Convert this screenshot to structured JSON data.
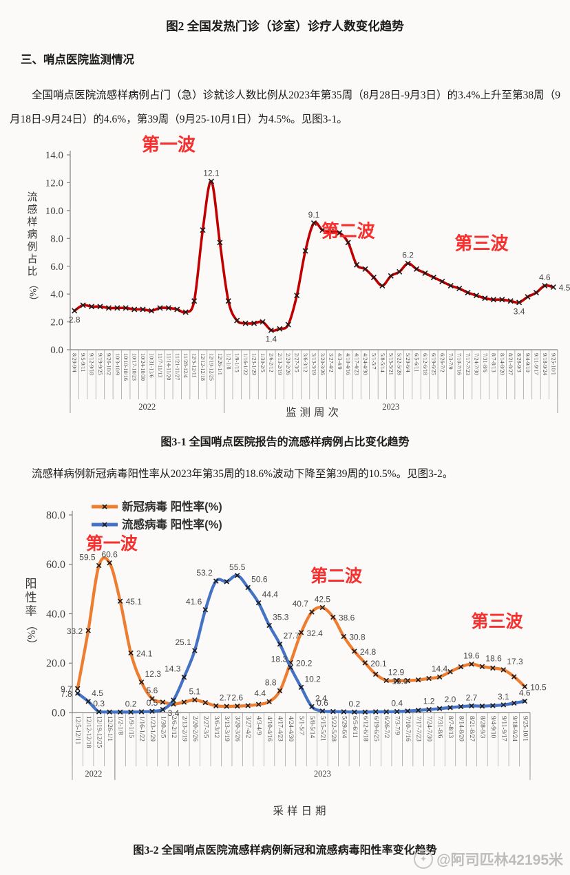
{
  "page": {
    "title": "图2 全国发热门诊（诊室）诊疗人数变化趋势",
    "section_heading": "三、哨点医院监测情况",
    "paragraph_ili": "全国哨点医院流感样病例占门（急）诊就诊人数比例从2023年第35周（8月28日-9月3日）的3.4%上升至第38周（9月18日-9月24日）的4.6%，第39周（9月25-10月1日）为4.5%。见图3-1。",
    "caption_chart1": "图3-1  全国哨点医院报告的流感样病例占比变化趋势",
    "paragraph_positivity": "流感样病例新冠病毒阳性率从2023年第35周的18.6%波动下降至第39周的10.5%。见图3-2。",
    "caption_chart2": "图3-2 全国哨点医院流感样病例新冠和流感病毒阳性率变化趋势",
    "watermark": "@阿司匹林42195米",
    "watermark_icon": "weibo-avatar-icon"
  },
  "chart_data": [
    {
      "type": "line",
      "title": "",
      "xlabel": "监测周次",
      "ylabel": "流感样病例占比（%）",
      "ylim": [
        0,
        14
      ],
      "ytick_labels": [
        "0.0",
        "2.0",
        "4.0",
        "6.0",
        "8.0",
        "10.0",
        "12.0",
        "14.0"
      ],
      "grid": false,
      "legend_position": "none",
      "annotation_color": "#f5302e",
      "axis_color": "#808080",
      "marker_color": "#1a1a1a",
      "categories": [
        "8/29-9/4",
        "9/5-9/11",
        "9/12-9/18",
        "9/19-9/25",
        "9/26-10/2",
        "10/3-10/9",
        "10/10-10/16",
        "10/17-10/23",
        "10/24-10/30",
        "10/31-11/6",
        "11/7-11/13",
        "11/14-11/20",
        "11/21-11/27",
        "11/28-12/4",
        "12/5-12/11",
        "12/12-12/18",
        "12/19-12/25",
        "12/26-1/1",
        "1/2-1/8",
        "1/9-1/15",
        "1/16-1/22",
        "1/23-1/29",
        "1/30-2/5",
        "2/6-2/12",
        "2/13-2/19",
        "2/20-2/26",
        "2/27-3/5",
        "3/6-3/12",
        "3/13-3/19",
        "3/20-3/26",
        "3/27-4/2",
        "4/3-4/9",
        "4/10-4/16",
        "4/17-4/23",
        "4/24-4/30",
        "5/1-5/7",
        "5/8-5/14",
        "5/15-5/21",
        "5/22-5/28",
        "5/29-6/4",
        "6/5-6/11",
        "6/12-6/18",
        "6/19-6/25",
        "6/26-7/2",
        "7/3-7/9",
        "7/10-7/16",
        "7/17-7/23",
        "7/24-7/30",
        "7/31-8/6",
        "8/7-8/13",
        "8/14-8/20",
        "8/21-8/27",
        "8/28-9/3",
        "9/4-9/10",
        "9/11-9/17",
        "9/18-9/24",
        "9/25-10/1"
      ],
      "year_groups": [
        {
          "label": "2022",
          "from": 0,
          "to": 17
        },
        {
          "label": "2023",
          "from": 18,
          "to": 56
        }
      ],
      "series": [
        {
          "name": "流感样病例占比(%)",
          "color": "#c00000",
          "values": [
            2.8,
            3.2,
            3.1,
            3.1,
            3.0,
            3.0,
            3.0,
            2.9,
            2.9,
            2.8,
            3.0,
            3.0,
            2.9,
            2.7,
            3.5,
            8.6,
            12.1,
            7.7,
            3.5,
            2.1,
            1.9,
            1.9,
            2.0,
            1.4,
            1.5,
            1.8,
            3.9,
            7.1,
            9.1,
            8.6,
            8.5,
            8.4,
            7.7,
            6.1,
            5.8,
            5.2,
            4.6,
            5.3,
            5.6,
            6.2,
            5.8,
            5.5,
            5.2,
            4.9,
            4.6,
            4.4,
            4.1,
            3.9,
            3.7,
            3.6,
            3.6,
            3.5,
            3.4,
            3.8,
            4.1,
            4.6,
            4.5
          ],
          "labels": [
            {
              "i": 0,
              "text": "2.8",
              "pos": "b"
            },
            {
              "i": 16,
              "text": "12.1",
              "pos": "a"
            },
            {
              "i": 23,
              "text": "1.4",
              "pos": "b"
            },
            {
              "i": 28,
              "text": "9.1",
              "pos": "a"
            },
            {
              "i": 39,
              "text": "6.2",
              "pos": "a"
            },
            {
              "i": 52,
              "text": "3.4",
              "pos": "b"
            },
            {
              "i": 55,
              "text": "4.6",
              "pos": "a"
            },
            {
              "i": 56,
              "text": "4.5",
              "pos": "r"
            }
          ]
        }
      ],
      "annotations": [
        {
          "text": "第一波",
          "i": 11.0,
          "y": 14.3
        },
        {
          "text": "第二波",
          "i": 32.0,
          "y": 8.1
        },
        {
          "text": "第三波",
          "i": 47.6,
          "y": 7.2
        }
      ]
    },
    {
      "type": "line",
      "title": "",
      "xlabel": "采样日期",
      "ylabel": "阳性率（%）",
      "ylim": [
        0,
        80
      ],
      "ytick_labels": [
        "0.0",
        "20.0",
        "40.0",
        "60.0",
        "80.0"
      ],
      "grid": false,
      "legend_position": "top-left",
      "annotation_color": "#f5302e",
      "axis_color": "#808080",
      "marker_color": "#1a1a1a",
      "categories": [
        "12/5-12/11",
        "12/12-12/18",
        "12/19-12/25",
        "12/26-1/1",
        "1/2-1/8",
        "1/9-1/15",
        "1/16-1/22",
        "1/23-1/29",
        "1/30-2/5",
        "2/6-2/12",
        "2/13-2/19",
        "2/20-2/26",
        "2/27-3/5",
        "3/6-3/12",
        "3/13-3/19",
        "3/20-3/26",
        "3/27-4/2",
        "4/3-4/9",
        "4/10-4/16",
        "4/17-4/23",
        "4/24-4/30",
        "5/1-5/7",
        "5/8-5/14",
        "5/15-5/21",
        "5/22-5/28",
        "5/29-6/4",
        "6/5-6/11",
        "6/12-6/18",
        "6/19-6/25",
        "6/26-7/2",
        "7/3-7/9",
        "7/10-7/16",
        "7/17-7/23",
        "7/24-7/30",
        "7/31-8/6",
        "8/7-8/13",
        "8/14-8/20",
        "8/21-8/27",
        "8/28-9/3",
        "9/4-9/10",
        "9/11-9/17",
        "9/18-9/24",
        "9/25-10/1"
      ],
      "year_groups": [
        {
          "label": "2022",
          "from": 0,
          "to": 3
        },
        {
          "label": "2023",
          "from": 4,
          "to": 42
        }
      ],
      "series": [
        {
          "name": "新冠病毒 阳性率(%)",
          "color": "#ed7d31",
          "values": [
            9.7,
            33.2,
            59.5,
            60.6,
            45.1,
            24.1,
            12.3,
            5.6,
            4.2,
            3.4,
            4.2,
            5.1,
            4.0,
            2.7,
            2.5,
            2.6,
            2.8,
            3.3,
            4.4,
            8.8,
            20.2,
            32.4,
            40.7,
            42.5,
            38.6,
            30.8,
            24.8,
            20.1,
            15.5,
            13.0,
            12.9,
            12.9,
            13.2,
            13.8,
            14.4,
            16.5,
            18.5,
            19.6,
            18.6,
            18.0,
            17.3,
            14.5,
            10.5
          ],
          "labels": [
            {
              "i": 0,
              "text": "9.7",
              "pos": "l"
            },
            {
              "i": 1,
              "text": "33.2",
              "pos": "l"
            },
            {
              "i": 2,
              "text": "59.5",
              "pos": "al"
            },
            {
              "i": 3,
              "text": "60.6",
              "pos": "a"
            },
            {
              "i": 4,
              "text": "45.1",
              "pos": "r"
            },
            {
              "i": 5,
              "text": "24.1",
              "pos": "r"
            },
            {
              "i": 6,
              "text": "12.3",
              "pos": "ar"
            },
            {
              "i": 7,
              "text": "5.6",
              "pos": "a"
            },
            {
              "i": 9,
              "text": "3.4",
              "pos": "b"
            },
            {
              "i": 11,
              "text": "5.1",
              "pos": "a"
            },
            {
              "i": 13,
              "text": "2.7",
              "pos": "ar"
            },
            {
              "i": 15,
              "text": "2.6",
              "pos": "a"
            },
            {
              "i": 18,
              "text": "4.4",
              "pos": "al"
            },
            {
              "i": 19,
              "text": "8.8",
              "pos": "al"
            },
            {
              "i": 20,
              "text": "20.2",
              "pos": "r"
            },
            {
              "i": 21,
              "text": "32.4",
              "pos": "r"
            },
            {
              "i": 22,
              "text": "40.7",
              "pos": "al"
            },
            {
              "i": 23,
              "text": "42.5",
              "pos": "a"
            },
            {
              "i": 24,
              "text": "38.6",
              "pos": "r"
            },
            {
              "i": 25,
              "text": "30.8",
              "pos": "r"
            },
            {
              "i": 26,
              "text": "24.8",
              "pos": "r"
            },
            {
              "i": 27,
              "text": "20.1",
              "pos": "r"
            },
            {
              "i": 29,
              "text": "13.0",
              "pos": "r"
            },
            {
              "i": 31,
              "text": "12.9",
              "pos": "al"
            },
            {
              "i": 34,
              "text": "14.4",
              "pos": "a"
            },
            {
              "i": 37,
              "text": "19.6",
              "pos": "a"
            },
            {
              "i": 38,
              "text": "18.6",
              "pos": "ar"
            },
            {
              "i": 40,
              "text": "17.3",
              "pos": "ar"
            },
            {
              "i": 42,
              "text": "10.5",
              "pos": "r"
            }
          ]
        },
        {
          "name": "流感病毒 阳性率(%)",
          "color": "#4472c4",
          "values": [
            7.8,
            4.5,
            0.3,
            0.2,
            0.2,
            0.2,
            0.3,
            0.5,
            1.2,
            5.0,
            14.3,
            25.1,
            41.6,
            53.2,
            53.0,
            55.5,
            50.6,
            44.4,
            35.3,
            27.7,
            18.3,
            10.2,
            2.4,
            0.6,
            0.4,
            0.3,
            0.2,
            0.2,
            0.3,
            0.3,
            0.4,
            0.6,
            0.9,
            1.2,
            1.6,
            2.0,
            2.4,
            2.7,
            2.6,
            2.8,
            3.1,
            3.8,
            4.6
          ],
          "labels": [
            {
              "i": 0,
              "text": "7.8",
              "pos": "l"
            },
            {
              "i": 1,
              "text": "4.5",
              "pos": "ar"
            },
            {
              "i": 2,
              "text": "0.3",
              "pos": "a"
            },
            {
              "i": 5,
              "text": "0.2",
              "pos": "a"
            },
            {
              "i": 7,
              "text": "0.5",
              "pos": "a"
            },
            {
              "i": 10,
              "text": "14.3",
              "pos": "al"
            },
            {
              "i": 11,
              "text": "25.1",
              "pos": "al"
            },
            {
              "i": 12,
              "text": "41.6",
              "pos": "al"
            },
            {
              "i": 13,
              "text": "53.2",
              "pos": "al"
            },
            {
              "i": 15,
              "text": "55.5",
              "pos": "a"
            },
            {
              "i": 16,
              "text": "50.6",
              "pos": "ar"
            },
            {
              "i": 17,
              "text": "44.4",
              "pos": "ar"
            },
            {
              "i": 18,
              "text": "35.3",
              "pos": "ar"
            },
            {
              "i": 19,
              "text": "27.7",
              "pos": "ar"
            },
            {
              "i": 20,
              "text": "18.3",
              "pos": "al"
            },
            {
              "i": 21,
              "text": "10.2",
              "pos": "ar"
            },
            {
              "i": 22,
              "text": "2.4",
              "pos": "ar"
            },
            {
              "i": 23,
              "text": "0.6",
              "pos": "a"
            },
            {
              "i": 26,
              "text": "0.2",
              "pos": "a"
            },
            {
              "i": 30,
              "text": "0.4",
              "pos": "a"
            },
            {
              "i": 33,
              "text": "1.2",
              "pos": "a"
            },
            {
              "i": 35,
              "text": "2.0",
              "pos": "a"
            },
            {
              "i": 37,
              "text": "2.7",
              "pos": "a"
            },
            {
              "i": 40,
              "text": "3.1",
              "pos": "a"
            },
            {
              "i": 42,
              "text": "4.6",
              "pos": "a"
            }
          ]
        }
      ],
      "annotations": [
        {
          "text": "第一波",
          "i": 3.2,
          "y": 66.0
        },
        {
          "text": "第二波",
          "i": 24.3,
          "y": 53.0
        },
        {
          "text": "第三波",
          "i": 39.4,
          "y": 34.5
        }
      ]
    }
  ]
}
